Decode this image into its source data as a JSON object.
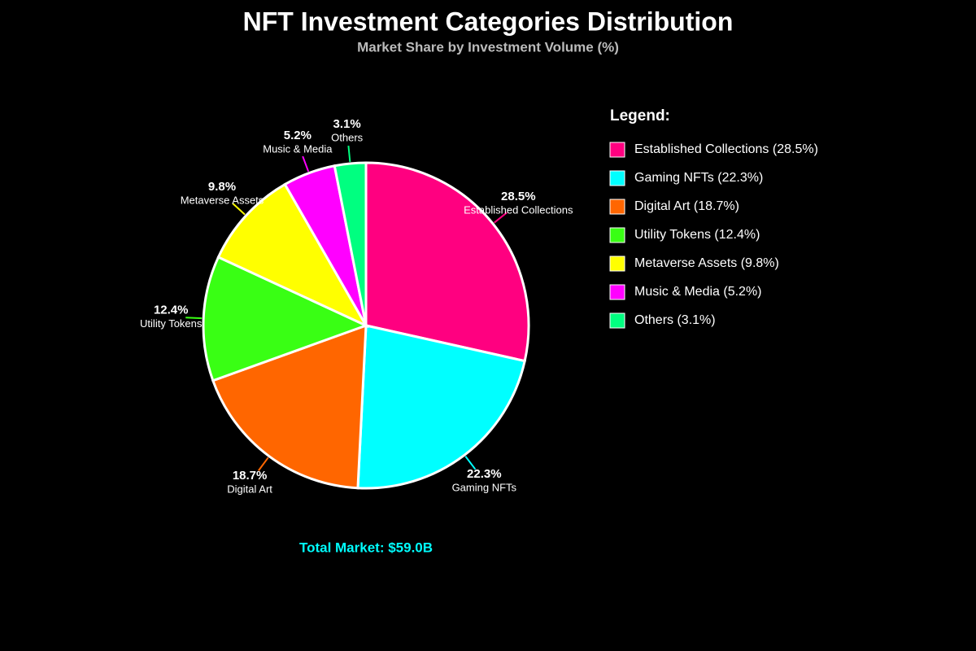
{
  "chart_data": {
    "type": "pie",
    "title": "NFT Investment Categories Distribution",
    "subtitle": "Market Share by Investment Volume (%)",
    "categories": [
      "Established Collections",
      "Gaming NFTs",
      "Digital Art",
      "Utility Tokens",
      "Metaverse Assets",
      "Music & Media",
      "Others"
    ],
    "values": [
      28.5,
      22.3,
      18.7,
      12.4,
      9.8,
      5.2,
      3.1
    ],
    "value_labels": [
      "28.5%",
      "22.3%",
      "18.7%",
      "12.4%",
      "9.8%",
      "5.2%",
      "3.1%"
    ],
    "colors": [
      "#ff0080",
      "#00ffff",
      "#ff6600",
      "#39ff14",
      "#ffff00",
      "#ff00ff",
      "#00ff80"
    ],
    "legend_title": "Legend:",
    "legend_labels": [
      "Established Collections (28.5%)",
      "Gaming NFTs (22.3%)",
      "Digital Art (18.7%)",
      "Utility Tokens (12.4%)",
      "Metaverse Assets (9.8%)",
      "Music & Media (5.2%)",
      "Others (3.1%)"
    ],
    "annotation": "Total Market: $59.0B"
  }
}
